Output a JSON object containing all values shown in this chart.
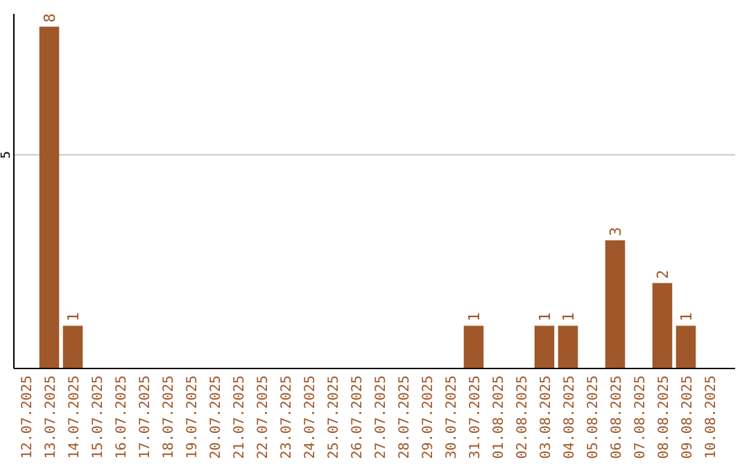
{
  "chart_data": {
    "type": "bar",
    "categories": [
      "12.07.2025",
      "13.07.2025",
      "14.07.2025",
      "15.07.2025",
      "16.07.2025",
      "17.07.2025",
      "18.07.2025",
      "19.07.2025",
      "20.07.2025",
      "21.07.2025",
      "22.07.2025",
      "23.07.2025",
      "24.07.2025",
      "25.07.2025",
      "26.07.2025",
      "27.07.2025",
      "28.07.2025",
      "29.07.2025",
      "30.07.2025",
      "31.07.2025",
      "01.08.2025",
      "02.08.2025",
      "03.08.2025",
      "04.08.2025",
      "05.08.2025",
      "06.08.2025",
      "07.08.2025",
      "08.08.2025",
      "09.08.2025",
      "10.08.2025"
    ],
    "values": [
      0,
      8,
      1,
      0,
      0,
      0,
      0,
      0,
      0,
      0,
      0,
      0,
      0,
      0,
      0,
      0,
      0,
      0,
      0,
      1,
      0,
      0,
      1,
      1,
      0,
      3,
      0,
      2,
      1,
      0
    ],
    "value_labels": [
      null,
      "8",
      "1",
      null,
      null,
      null,
      null,
      null,
      null,
      null,
      null,
      null,
      null,
      null,
      null,
      null,
      null,
      null,
      null,
      "1",
      null,
      null,
      "1",
      "1",
      null,
      "3",
      null,
      "2",
      "1",
      null
    ],
    "color": "#a0582a",
    "ylim": [
      0,
      8.3
    ],
    "yticks": [
      5
    ],
    "grid": "y"
  }
}
